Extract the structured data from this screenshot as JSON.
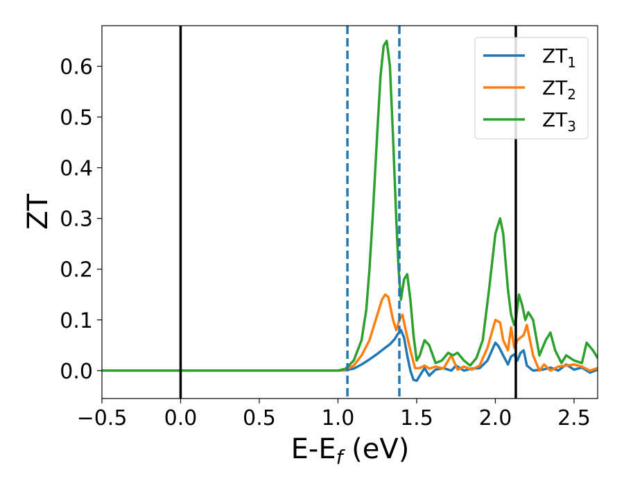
{
  "chart_data": {
    "type": "line",
    "xlabel": {
      "main": "E-E",
      "sub": "f",
      "unit": " (eV)"
    },
    "ylabel": "ZT",
    "xlim": [
      -0.5,
      2.65
    ],
    "ylim": [
      -0.055,
      0.68
    ],
    "xticks": [
      -0.5,
      0.0,
      0.5,
      1.0,
      1.5,
      2.0,
      2.5
    ],
    "xtick_labels": [
      "−0.5",
      "0.0",
      "0.5",
      "1.0",
      "1.5",
      "2.0",
      "2.5"
    ],
    "yticks": [
      0.0,
      0.1,
      0.2,
      0.3,
      0.4,
      0.5,
      0.6
    ],
    "ytick_labels": [
      "0.0",
      "0.1",
      "0.2",
      "0.3",
      "0.4",
      "0.5",
      "0.6"
    ],
    "grid": false,
    "legend_position": "top-right",
    "vlines_solid": [
      0.0,
      2.13
    ],
    "vlines_dashed": [
      1.06,
      1.39
    ],
    "vline_solid_color": "#000000",
    "vline_dashed_color": "#1f77b4",
    "series": [
      {
        "name": "ZT",
        "sub": "1",
        "color": "#1f77b4",
        "x": [
          -0.5,
          0.9,
          1.0,
          1.05,
          1.1,
          1.15,
          1.2,
          1.25,
          1.3,
          1.33,
          1.36,
          1.38,
          1.4,
          1.42,
          1.44,
          1.46,
          1.48,
          1.5,
          1.52,
          1.55,
          1.58,
          1.62,
          1.67,
          1.72,
          1.75,
          1.8,
          1.85,
          1.9,
          1.95,
          2.0,
          2.02,
          2.05,
          2.08,
          2.1,
          2.12,
          2.14,
          2.16,
          2.18,
          2.2,
          2.24,
          2.3,
          2.35,
          2.4,
          2.45,
          2.5,
          2.55,
          2.6,
          2.65
        ],
        "y": [
          0.0,
          0.0,
          0.0,
          0.001,
          0.004,
          0.012,
          0.022,
          0.033,
          0.045,
          0.052,
          0.062,
          0.072,
          0.08,
          0.065,
          0.03,
          0.0,
          -0.018,
          -0.02,
          -0.01,
          0.005,
          -0.01,
          0.002,
          0.005,
          0.0,
          0.01,
          0.0,
          0.004,
          0.005,
          0.02,
          0.055,
          0.048,
          0.03,
          0.012,
          0.028,
          0.032,
          0.02,
          0.035,
          0.04,
          0.01,
          0.0,
          0.002,
          0.006,
          0.0,
          0.012,
          0.002,
          0.006,
          -0.004,
          0.002
        ]
      },
      {
        "name": "ZT",
        "sub": "2",
        "color": "#ff7f0e",
        "x": [
          -0.5,
          0.9,
          1.0,
          1.05,
          1.1,
          1.15,
          1.2,
          1.25,
          1.28,
          1.3,
          1.32,
          1.35,
          1.37,
          1.39,
          1.41,
          1.43,
          1.46,
          1.49,
          1.52,
          1.55,
          1.58,
          1.62,
          1.67,
          1.72,
          1.76,
          1.8,
          1.85,
          1.9,
          1.95,
          2.0,
          2.03,
          2.05,
          2.08,
          2.1,
          2.12,
          2.14,
          2.16,
          2.18,
          2.2,
          2.24,
          2.28,
          2.31,
          2.35,
          2.4,
          2.45,
          2.5,
          2.55,
          2.6,
          2.65
        ],
        "y": [
          0.0,
          0.0,
          0.0,
          0.002,
          0.01,
          0.03,
          0.06,
          0.11,
          0.14,
          0.15,
          0.145,
          0.1,
          0.08,
          0.1,
          0.11,
          0.08,
          0.04,
          0.005,
          0.005,
          0.01,
          0.004,
          0.008,
          0.004,
          0.03,
          0.002,
          0.008,
          0.002,
          0.01,
          0.045,
          0.1,
          0.095,
          0.06,
          0.04,
          0.085,
          0.045,
          0.06,
          0.065,
          0.07,
          0.09,
          0.03,
          0.0,
          0.012,
          0.0,
          0.008,
          0.01,
          0.012,
          0.008,
          0.0,
          0.005
        ]
      },
      {
        "name": "ZT",
        "sub": "3",
        "color": "#2ca02c",
        "x": [
          -0.5,
          0.9,
          1.0,
          1.05,
          1.1,
          1.15,
          1.18,
          1.2,
          1.22,
          1.25,
          1.27,
          1.29,
          1.31,
          1.33,
          1.35,
          1.37,
          1.385,
          1.4,
          1.42,
          1.44,
          1.46,
          1.48,
          1.5,
          1.52,
          1.55,
          1.58,
          1.62,
          1.66,
          1.7,
          1.73,
          1.76,
          1.8,
          1.84,
          1.88,
          1.92,
          1.96,
          2.0,
          2.03,
          2.05,
          2.08,
          2.1,
          2.12,
          2.13,
          2.15,
          2.17,
          2.19,
          2.21,
          2.24,
          2.28,
          2.32,
          2.35,
          2.38,
          2.42,
          2.45,
          2.5,
          2.55,
          2.58,
          2.62,
          2.65
        ],
        "y": [
          0.0,
          0.0,
          0.0,
          0.004,
          0.02,
          0.06,
          0.12,
          0.2,
          0.3,
          0.47,
          0.58,
          0.64,
          0.65,
          0.6,
          0.46,
          0.3,
          0.2,
          0.14,
          0.18,
          0.19,
          0.14,
          0.07,
          0.02,
          0.03,
          0.06,
          0.05,
          0.015,
          0.02,
          0.035,
          0.03,
          0.035,
          0.02,
          0.01,
          0.025,
          0.06,
          0.16,
          0.27,
          0.3,
          0.27,
          0.16,
          0.11,
          0.09,
          0.1,
          0.15,
          0.13,
          0.1,
          0.115,
          0.1,
          0.03,
          0.06,
          0.075,
          0.04,
          0.015,
          0.03,
          0.02,
          0.015,
          0.055,
          0.04,
          0.025
        ]
      }
    ]
  }
}
